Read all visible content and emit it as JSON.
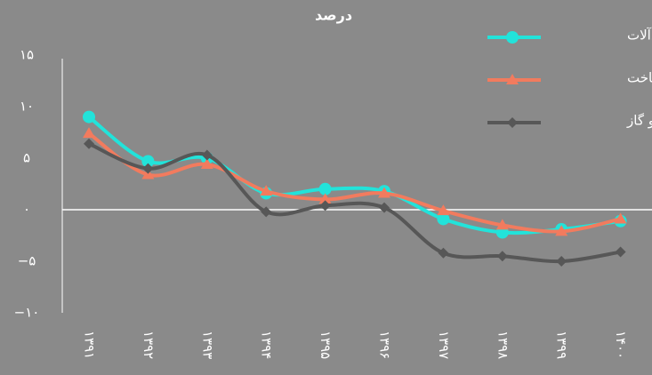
{
  "chart_data": {
    "type": "line",
    "title": "درصد",
    "categories": [
      "۱۳۹۱",
      "۱۳۹۲",
      "۱۳۹۳",
      "۱۳۹۴",
      "۱۳۹۵",
      "۱۳۹۶",
      "۱۳۹۷",
      "۱۳۹۸",
      "۱۳۹۹",
      "۱۴۰۰"
    ],
    "series": [
      {
        "name": "کل ماشین‌آلات",
        "color": "#22e3da",
        "marker": "circle",
        "values": [
          9.0,
          4.7,
          5.0,
          1.6,
          2.0,
          1.8,
          -0.9,
          -2.2,
          -1.9,
          -1.1
        ]
      },
      {
        "name": "صنعت ساخت",
        "color": "#f27b5e",
        "marker": "triangle",
        "values": [
          7.4,
          3.4,
          4.4,
          1.8,
          1.0,
          1.6,
          -0.1,
          -1.5,
          -2.1,
          -0.9
        ]
      },
      {
        "name": "نفت و گاز",
        "color": "#575757",
        "marker": "diamond",
        "values": [
          6.4,
          4.0,
          5.3,
          -0.2,
          0.4,
          0.2,
          -4.2,
          -4.5,
          -5.0,
          -4.1
        ]
      }
    ],
    "ylim": [
      -10,
      15
    ],
    "yticks": [
      {
        "value": -10,
        "label": "−۱۰"
      },
      {
        "value": -5,
        "label": "−۵"
      },
      {
        "value": 0,
        "label": "۰"
      },
      {
        "value": 5,
        "label": "۵"
      },
      {
        "value": 10,
        "label": "۱۰"
      },
      {
        "value": 15,
        "label": "۱۵"
      }
    ],
    "legend": "top-right"
  }
}
